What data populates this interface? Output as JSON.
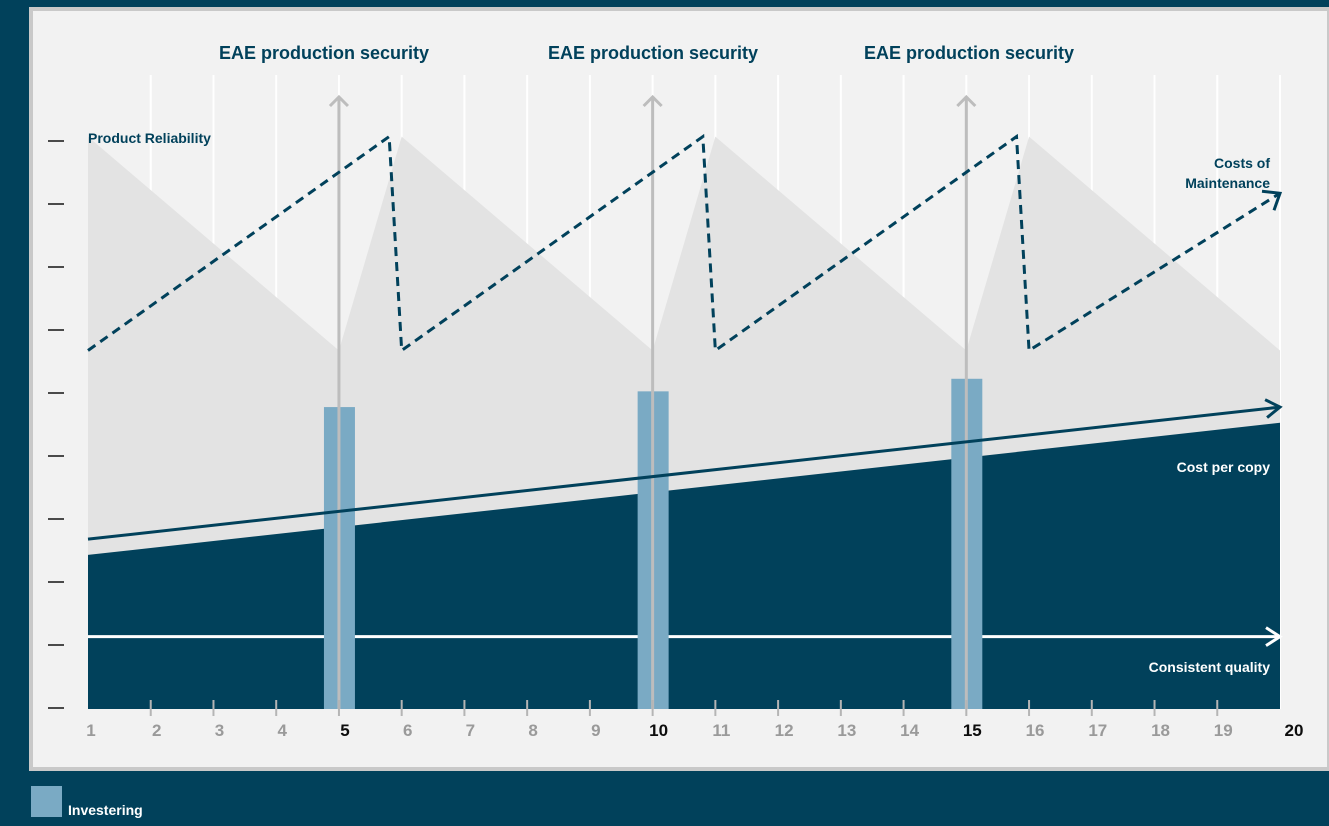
{
  "colors": {
    "background": "#01415b",
    "panel": "#f2f2f2",
    "panel_border": "#c9c9c9",
    "reliability_fill": "#e3e3e3",
    "cost_fill": "#01415b",
    "investment_bar": "#7aaac4",
    "arrow_gray": "#bdbdbd",
    "tick_label": "#9a9a9a",
    "quality_line": "#ffffff"
  },
  "headers": {
    "left": "EAE production security",
    "middle": "EAE production security",
    "right": "EAE production security"
  },
  "labels": {
    "product_reliability": "Product Reliability",
    "costs_of_maintenance_line1": "Costs of",
    "costs_of_maintenance_line2": "Maintenance",
    "cost_per_copy": "Cost per copy",
    "consistent_quality": "Consistent quality"
  },
  "legend": {
    "investment_label": "Investering",
    "icon": "square-swatch-icon"
  },
  "chart_data": {
    "type": "area",
    "x": [
      1,
      2,
      3,
      4,
      5,
      6,
      7,
      8,
      9,
      10,
      11,
      12,
      13,
      14,
      15,
      16,
      17,
      18,
      19,
      20
    ],
    "x_tick_labels": [
      "1",
      "2",
      "3",
      "4",
      "5",
      "6",
      "7",
      "8",
      "9",
      "10",
      "11",
      "12",
      "13",
      "14",
      "15",
      "16",
      "17",
      "18",
      "19",
      "20"
    ],
    "emphasized_ticks": [
      5,
      10,
      15,
      20
    ],
    "xlim": [
      1,
      20
    ],
    "ylim": [
      0,
      10
    ],
    "y_tick_count": 10,
    "grid": "vertical",
    "investment_at": [
      5,
      10,
      15
    ],
    "investment_values": [
      4.8,
      5.05,
      5.25
    ],
    "product_reliability": {
      "x": [
        1,
        5,
        6,
        10,
        11,
        15,
        16,
        20
      ],
      "y": [
        9.1,
        5.7,
        9.1,
        5.7,
        9.1,
        5.7,
        9.1,
        5.7
      ]
    },
    "costs_of_maintenance": {
      "x": [
        1,
        5.8,
        6,
        10.8,
        11,
        15.8,
        16,
        20
      ],
      "y": [
        5.7,
        9.1,
        5.7,
        9.1,
        5.7,
        9.1,
        5.7,
        8.2
      ]
    },
    "cost_per_copy": {
      "x": [
        1,
        20
      ],
      "y": [
        2.45,
        4.55
      ]
    },
    "cost_trend": {
      "x": [
        1,
        20
      ],
      "y": [
        2.7,
        4.8
      ]
    },
    "consistent_quality": {
      "x": [
        1,
        20
      ],
      "y": [
        1.15,
        1.15
      ]
    }
  }
}
